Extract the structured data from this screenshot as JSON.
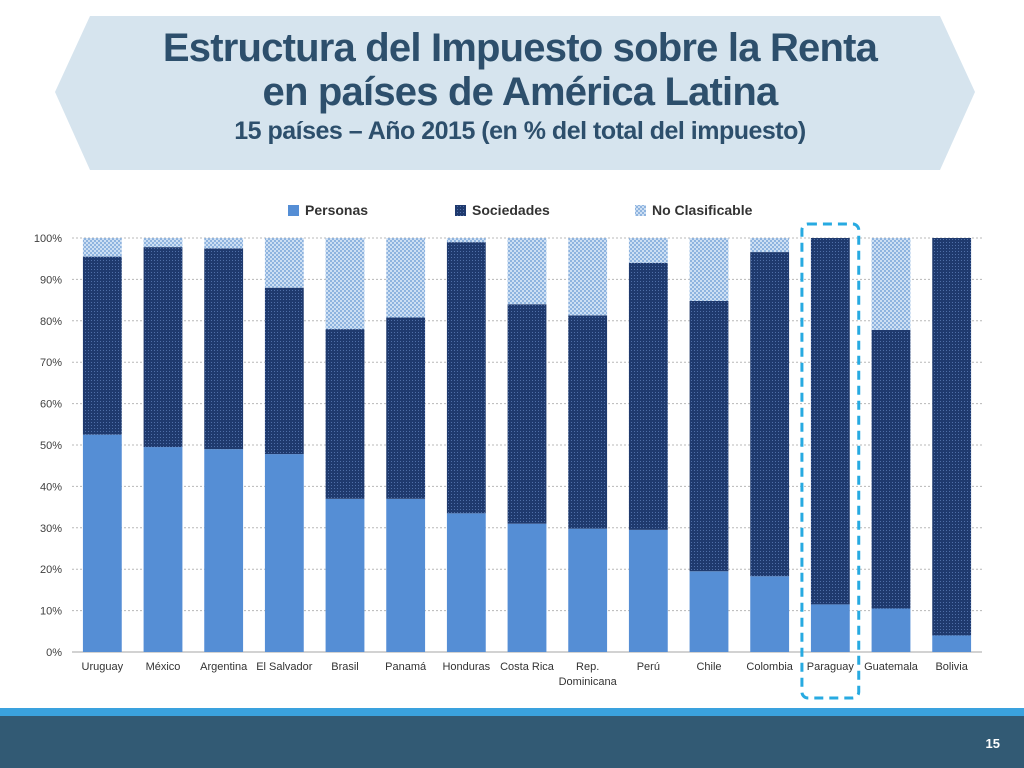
{
  "slide": {
    "title_line1": "Estructura del Impuesto sobre la Renta",
    "title_line2": "en países de América Latina",
    "subtitle": "15 países – Año 2015 (en % del total del impuesto)",
    "page_number": "15"
  },
  "chart_data": {
    "type": "bar",
    "stacked": true,
    "title": "",
    "xlabel": "",
    "ylabel": "",
    "ylim": [
      0,
      100
    ],
    "y_ticks": [
      "0%",
      "10%",
      "20%",
      "30%",
      "40%",
      "50%",
      "60%",
      "70%",
      "80%",
      "90%",
      "100%"
    ],
    "grid": true,
    "legend_position": "top",
    "categories": [
      "Uruguay",
      "México",
      "Argentina",
      "El Salvador",
      "Brasil",
      "Panamá",
      "Honduras",
      "Costa Rica",
      "Rep. Dominicana",
      "Perú",
      "Chile",
      "Colombia",
      "Paraguay",
      "Guatemala",
      "Bolivia"
    ],
    "category_lines": [
      [
        "Uruguay"
      ],
      [
        "México"
      ],
      [
        "Argentina"
      ],
      [
        "El Salvador"
      ],
      [
        "Brasil"
      ],
      [
        "Panamá"
      ],
      [
        "Honduras"
      ],
      [
        "Costa Rica"
      ],
      [
        "Rep.",
        "Dominicana"
      ],
      [
        "Perú"
      ],
      [
        "Chile"
      ],
      [
        "Colombia"
      ],
      [
        "Paraguay"
      ],
      [
        "Guatemala"
      ],
      [
        "Bolivia"
      ]
    ],
    "series": [
      {
        "name": "Personas",
        "color": "#558ed5",
        "values": [
          52.5,
          49.5,
          49.0,
          47.8,
          37.0,
          37.0,
          33.5,
          31.0,
          29.8,
          29.5,
          19.5,
          18.3,
          11.5,
          10.5,
          4.0
        ]
      },
      {
        "name": "Sociedades",
        "color": "#1f3a6e",
        "values": [
          43.0,
          48.3,
          48.5,
          40.2,
          41.0,
          43.8,
          65.5,
          53.0,
          51.5,
          64.5,
          65.3,
          78.3,
          88.5,
          67.3,
          96.0
        ]
      },
      {
        "name": "No Clasificable",
        "color": "#a9c8ea",
        "values": [
          4.5,
          2.2,
          2.5,
          12.0,
          22.0,
          19.2,
          1.0,
          16.0,
          18.7,
          6.0,
          15.2,
          3.4,
          0.0,
          22.2,
          0.0
        ]
      }
    ],
    "highlight": {
      "category": "Paraguay",
      "color": "#27aae1"
    }
  }
}
